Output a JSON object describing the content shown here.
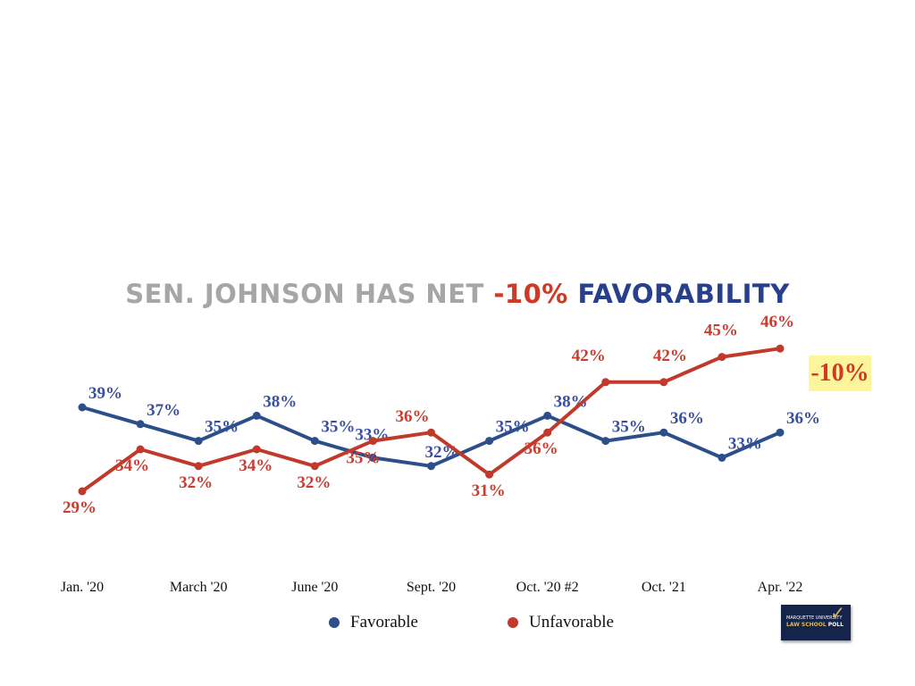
{
  "title": {
    "part1": "SEN. JOHNSON HAS NET ",
    "part2": "-10%",
    "part3": " FAVORABILITY"
  },
  "net_badge": "-10%",
  "logo": {
    "line1": "MARQUETTE UNIVERSITY",
    "line2a": "LAW SCHOOL",
    "line2b": " POLL"
  },
  "colors": {
    "favorable": "#2c4f8a",
    "unfavorable": "#c0392b",
    "favorable_label": "#3a4fa0",
    "unfavorable_label": "#cc3b2e"
  },
  "chart_data": {
    "type": "line",
    "title": "SEN. JOHNSON HAS NET -10% FAVORABILITY",
    "xlabel": "",
    "ylabel": "",
    "categories": [
      "Jan. '20",
      "",
      "March '20",
      "",
      "June '20",
      "",
      "Sept. '20",
      "",
      "Oct. '20 #2",
      "",
      "Oct. '21",
      "",
      "Apr. '22"
    ],
    "tick_labels": [
      {
        "index": 0,
        "label": "Jan. '20"
      },
      {
        "index": 2,
        "label": "March '20"
      },
      {
        "index": 4,
        "label": "June '20"
      },
      {
        "index": 6,
        "label": "Sept. '20"
      },
      {
        "index": 8,
        "label": "Oct. '20 #2"
      },
      {
        "index": 10,
        "label": "Oct. '21"
      },
      {
        "index": 12,
        "label": "Apr. '22"
      }
    ],
    "series": [
      {
        "name": "Favorable",
        "values": [
          39,
          37,
          35,
          38,
          35,
          33,
          32,
          35,
          38,
          35,
          36,
          33,
          36
        ]
      },
      {
        "name": "Unfavorable",
        "values": [
          29,
          34,
          32,
          34,
          32,
          35,
          36,
          31,
          36,
          42,
          42,
          45,
          46
        ]
      }
    ],
    "ylim": [
      25,
      50
    ],
    "grid": false,
    "legend": "bottom-center",
    "annotation": "-10%"
  }
}
